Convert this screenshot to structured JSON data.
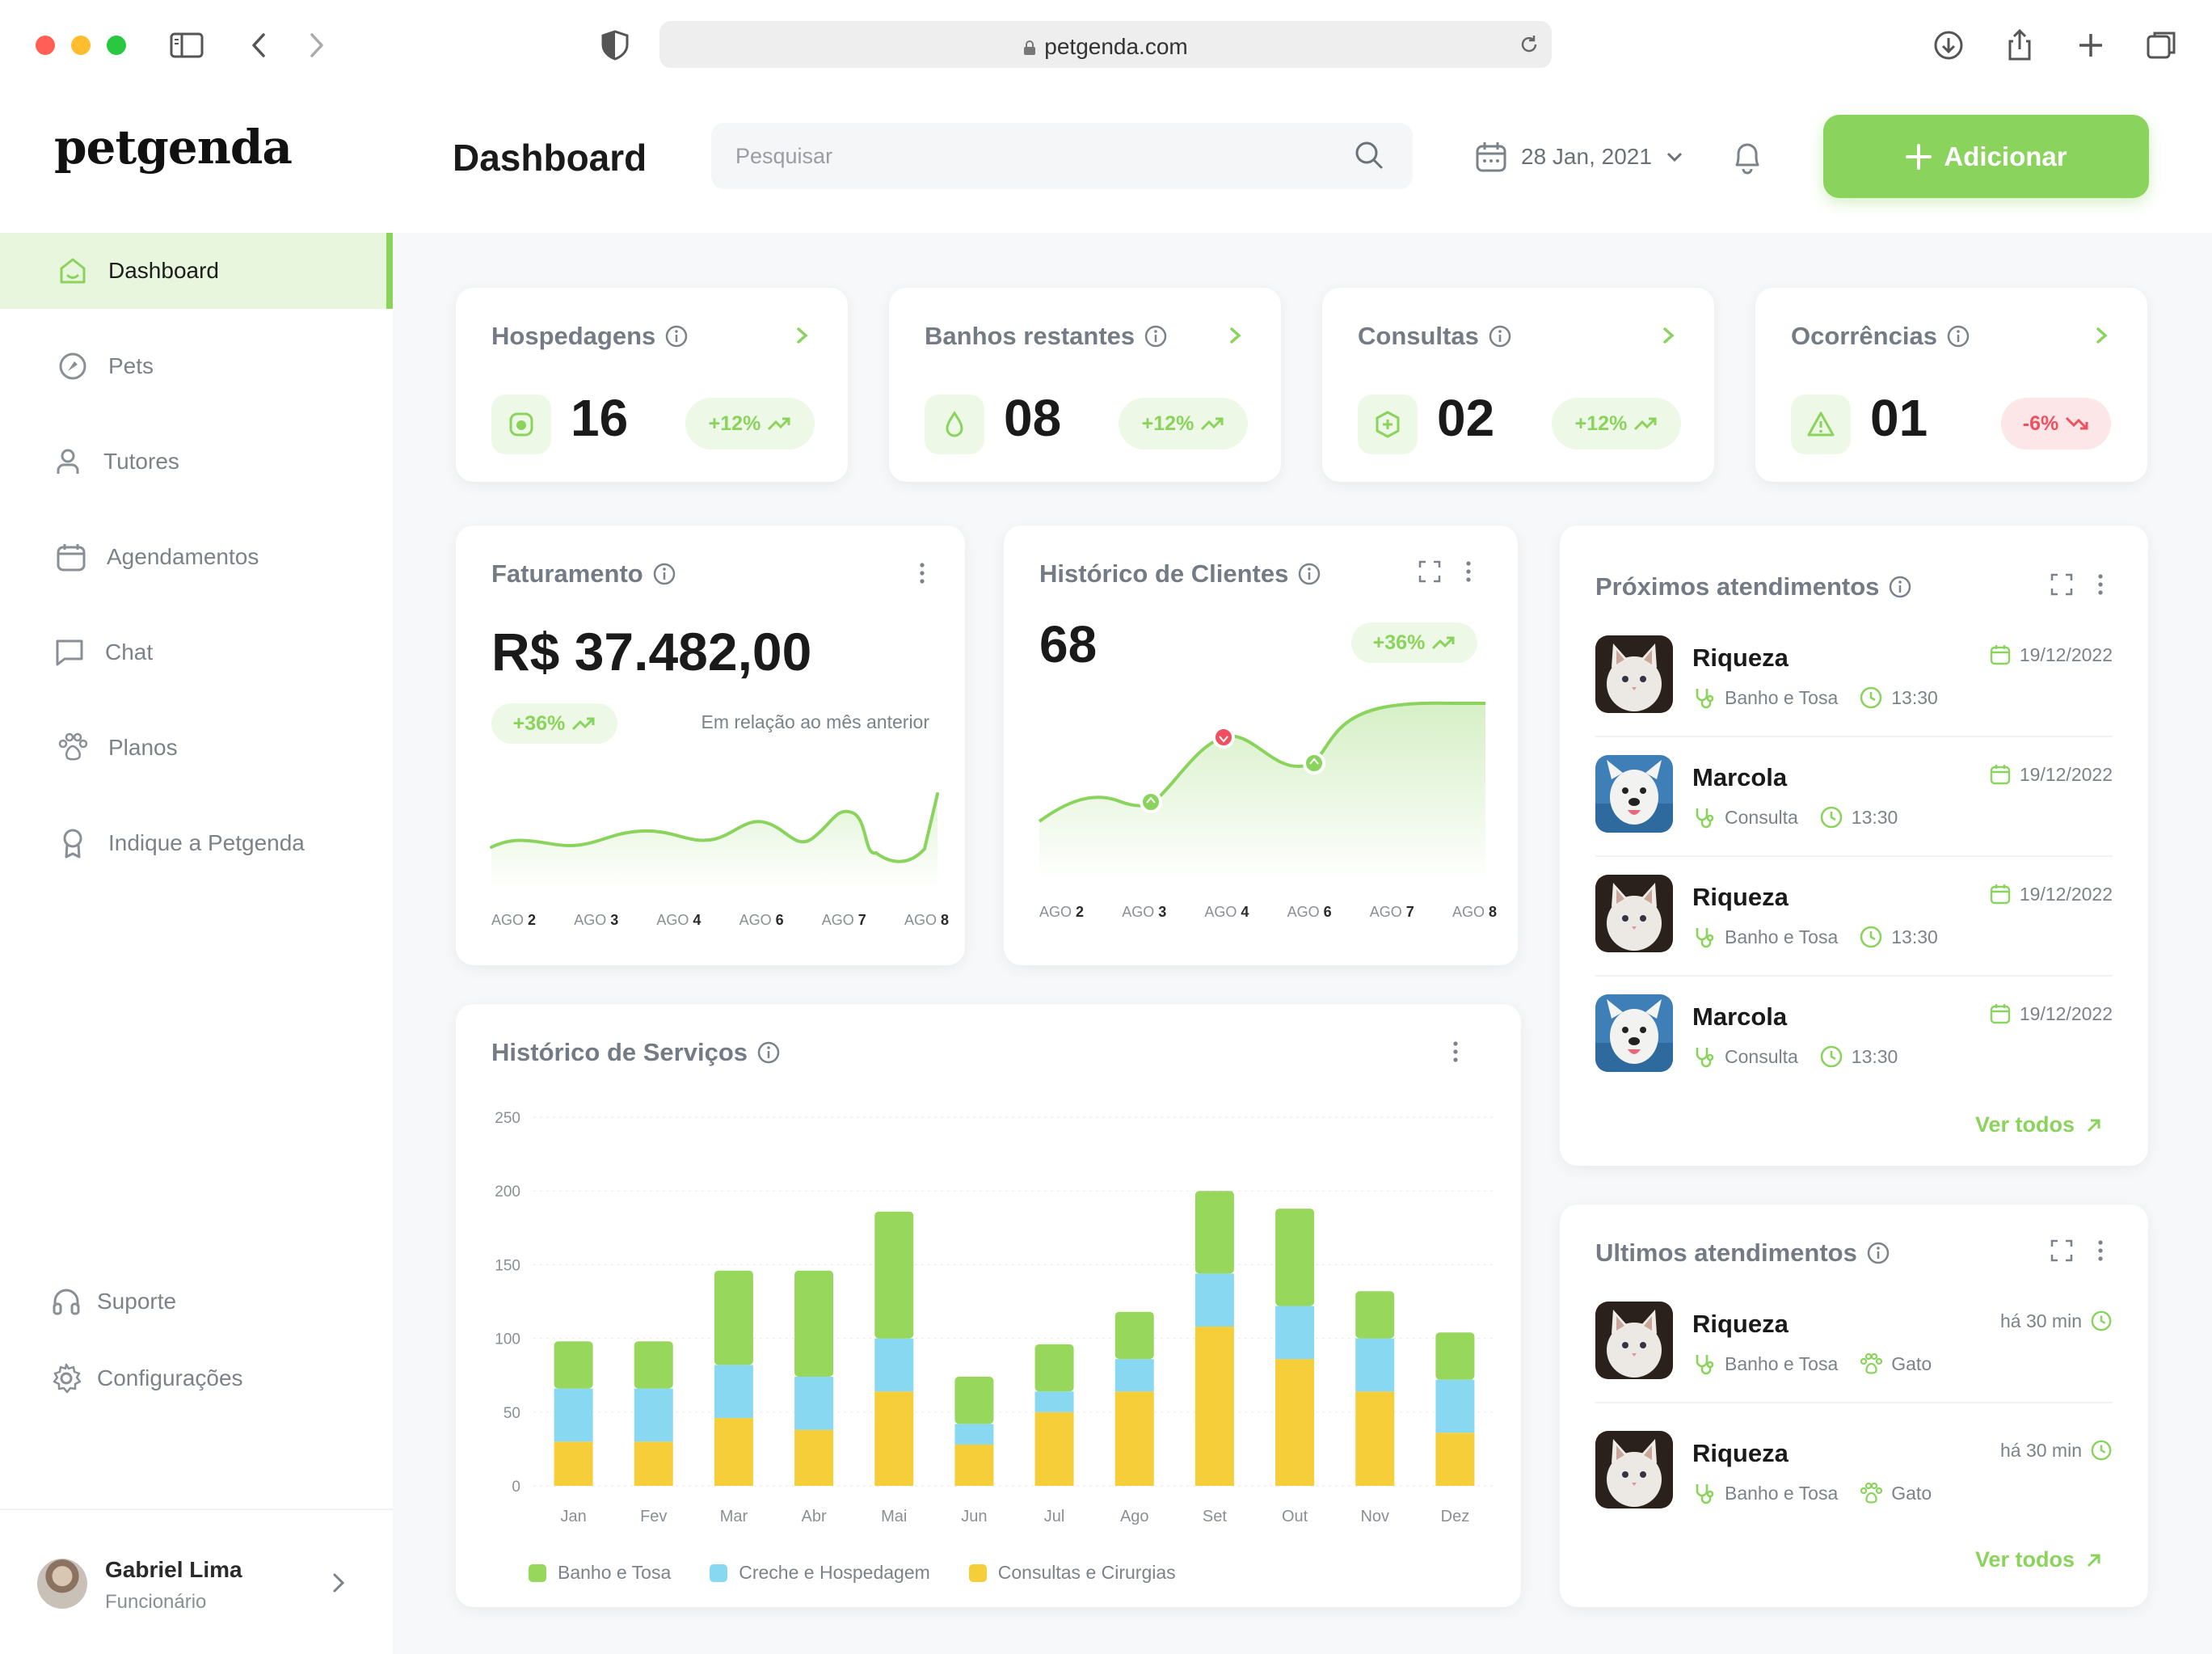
{
  "browser": {
    "url": "petgenda.com",
    "icons": [
      "sidebar-toggle-icon",
      "back-icon",
      "forward-icon",
      "shield-icon",
      "reload-icon",
      "download-icon",
      "share-icon",
      "new-tab-icon",
      "tabs-overview-icon"
    ]
  },
  "header": {
    "logo": "petgenda",
    "title": "Dashboard",
    "search_placeholder": "Pesquisar",
    "date": "28 Jan, 2021",
    "add_label": "Adicionar"
  },
  "sidebar": {
    "items": [
      {
        "label": "Dashboard",
        "icon": "home-icon"
      },
      {
        "label": "Pets",
        "icon": "pet-icon"
      },
      {
        "label": "Tutores",
        "icon": "user-icon"
      },
      {
        "label": "Agendamentos",
        "icon": "calendar-icon"
      },
      {
        "label": "Chat",
        "icon": "chat-icon"
      },
      {
        "label": "Planos",
        "icon": "paw-icon"
      },
      {
        "label": "Indique a Petgenda",
        "icon": "award-icon"
      }
    ],
    "footer": [
      {
        "label": "Suporte",
        "icon": "headset-icon"
      },
      {
        "label": "Configurações",
        "icon": "gear-icon"
      }
    ],
    "user": {
      "name": "Gabriel Lima",
      "role": "Funcionário"
    }
  },
  "stats": [
    {
      "title": "Hospedagens",
      "value": "16",
      "change": "+12%",
      "trend": "up"
    },
    {
      "title": "Banhos restantes",
      "value": "08",
      "change": "+12%",
      "trend": "up"
    },
    {
      "title": "Consultas",
      "value": "02",
      "change": "+12%",
      "trend": "up"
    },
    {
      "title": "Ocorrências",
      "value": "01",
      "change": "-6%",
      "trend": "down"
    }
  ],
  "faturamento": {
    "title": "Faturamento",
    "value": "R$ 37.482,00",
    "change": "+36%",
    "relation": "Em relação  ao mês anterior",
    "labels": [
      {
        "pre": "AGO",
        "num": "2"
      },
      {
        "pre": "AGO",
        "num": "3"
      },
      {
        "pre": "AGO",
        "num": "4"
      },
      {
        "pre": "AGO",
        "num": "6"
      },
      {
        "pre": "AGO",
        "num": "7"
      },
      {
        "pre": "AGO",
        "num": "8"
      }
    ]
  },
  "clientes": {
    "title": "Histórico de Clientes",
    "value": "68",
    "change": "+36%",
    "labels": [
      {
        "pre": "AGO",
        "num": "2"
      },
      {
        "pre": "AGO",
        "num": "3"
      },
      {
        "pre": "AGO",
        "num": "4"
      },
      {
        "pre": "AGO",
        "num": "6"
      },
      {
        "pre": "AGO",
        "num": "7"
      },
      {
        "pre": "AGO",
        "num": "8"
      }
    ]
  },
  "proximos": {
    "title": "Próximos atendimentos",
    "items": [
      {
        "name": "Riqueza",
        "service": "Banho e Tosa",
        "time": "13:30",
        "date": "19/12/2022",
        "pet": "cat"
      },
      {
        "name": "Marcola",
        "service": "Consulta",
        "time": "13:30",
        "date": "19/12/2022",
        "pet": "dog"
      },
      {
        "name": "Riqueza",
        "service": "Banho e Tosa",
        "time": "13:30",
        "date": "19/12/2022",
        "pet": "cat"
      },
      {
        "name": "Marcola",
        "service": "Consulta",
        "time": "13:30",
        "date": "19/12/2022",
        "pet": "dog"
      }
    ],
    "ver_todos": "Ver todos"
  },
  "ultimos": {
    "title": "Ultimos atendimentos",
    "items": [
      {
        "name": "Riqueza",
        "service": "Banho e Tosa",
        "species": "Gato",
        "ago": "há 30 min"
      },
      {
        "name": "Riqueza",
        "service": "Banho e Tosa",
        "species": "Gato",
        "ago": "há 30 min"
      }
    ],
    "ver_todos": "Ver todos"
  },
  "servicos": {
    "title": "Histórico de Serviços"
  },
  "chart_data": {
    "type": "bar",
    "stacked": true,
    "title": "Histórico de Serviços",
    "categories": [
      "Jan",
      "Fev",
      "Mar",
      "Abr",
      "Mai",
      "Jun",
      "Jul",
      "Ago",
      "Set",
      "Out",
      "Nov",
      "Dez"
    ],
    "series": [
      {
        "name": "Consultas e Cirurgias",
        "color": "#f6ce3a",
        "values": [
          30,
          30,
          46,
          38,
          64,
          28,
          50,
          64,
          108,
          86,
          64,
          36
        ]
      },
      {
        "name": "Creche e Hospedagem",
        "color": "#89d8f2",
        "values": [
          36,
          36,
          36,
          36,
          36,
          14,
          14,
          22,
          36,
          36,
          36,
          36
        ]
      },
      {
        "name": "Banho e Tosa",
        "color": "#97d75c",
        "values": [
          32,
          32,
          64,
          72,
          86,
          32,
          32,
          32,
          56,
          66,
          32,
          32
        ]
      }
    ],
    "yticks": [
      0,
      50,
      100,
      150,
      200,
      250
    ],
    "ylim": [
      0,
      250
    ],
    "legend_order": [
      "Banho e Tosa",
      "Creche e Hospedagem",
      "Consultas e Cirurgias"
    ],
    "grid": true,
    "legend": "bottom-left"
  },
  "colors": {
    "accent": "#8ad35c",
    "accent_soft": "#eef8e6",
    "negative": "#ef4f5e",
    "negative_soft": "#fde6e8"
  }
}
